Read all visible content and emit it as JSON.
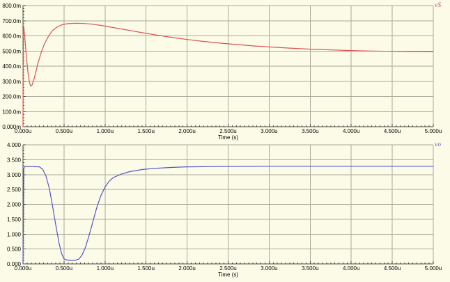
{
  "colors": {
    "background": "#FBFBE7",
    "grid": "#A9A99B",
    "axis": "#4A4A42",
    "tick_text": "#000000",
    "trace_red": "#DC5252",
    "trace_blue": "#5555C8"
  },
  "chart_data": [
    {
      "type": "line",
      "title": "",
      "legend": "vS",
      "trace_name": "vs-trace",
      "color": "#DC5252",
      "xlabel": "Time (s)",
      "ylabel": "",
      "x_unit": "us",
      "y_unit": "mV",
      "xlim": [
        0,
        5
      ],
      "ylim": [
        0,
        800
      ],
      "grid": true,
      "legend_position": "top-right-outside",
      "x_ticks": [
        "0.000u",
        "0.500u",
        "1.000u",
        "1.500u",
        "2.000u",
        "2.500u",
        "3.000u",
        "3.500u",
        "4.000u",
        "4.500u",
        "5.000u"
      ],
      "y_ticks": [
        "800.0m",
        "700.0m",
        "600.0m",
        "500.0m",
        "400.0m",
        "300.0m",
        "200.0m",
        "100.0m",
        "0.000m"
      ],
      "series": [
        {
          "name": "vS",
          "points": [
            [
              0,
              0
            ],
            [
              0.004,
              650
            ],
            [
              0.01,
              658
            ],
            [
              0.02,
              600
            ],
            [
              0.04,
              470
            ],
            [
              0.06,
              360
            ],
            [
              0.08,
              290
            ],
            [
              0.095,
              268
            ],
            [
              0.11,
              275
            ],
            [
              0.14,
              325
            ],
            [
              0.18,
              415
            ],
            [
              0.22,
              487
            ],
            [
              0.26,
              545
            ],
            [
              0.31,
              597
            ],
            [
              0.36,
              635
            ],
            [
              0.42,
              660
            ],
            [
              0.48,
              674
            ],
            [
              0.55,
              681
            ],
            [
              0.65,
              683
            ],
            [
              0.75,
              682
            ],
            [
              0.85,
              677
            ],
            [
              0.95,
              669
            ],
            [
              1.05,
              660
            ],
            [
              1.15,
              650
            ],
            [
              1.3,
              636
            ],
            [
              1.45,
              621
            ],
            [
              1.6,
              608
            ],
            [
              1.8,
              591
            ],
            [
              2.0,
              576
            ],
            [
              2.2,
              563
            ],
            [
              2.4,
              552
            ],
            [
              2.6,
              543
            ],
            [
              2.8,
              534
            ],
            [
              3.0,
              527
            ],
            [
              3.25,
              519
            ],
            [
              3.5,
              512
            ],
            [
              3.75,
              507
            ],
            [
              4.0,
              503
            ],
            [
              4.25,
              500
            ],
            [
              4.5,
              498
            ],
            [
              4.75,
              496
            ],
            [
              5.0,
              495
            ]
          ]
        }
      ]
    },
    {
      "type": "line",
      "title": "",
      "legend": "vo",
      "trace_name": "vo-trace",
      "color": "#5555C8",
      "xlabel": "Time (s)",
      "ylabel": "",
      "x_unit": "us",
      "y_unit": "V",
      "xlim": [
        0,
        5
      ],
      "ylim": [
        0,
        4
      ],
      "grid": true,
      "legend_position": "top-right-outside",
      "x_ticks": [
        "0.000u",
        "0.500u",
        "1.000u",
        "1.500u",
        "2.000u",
        "2.500u",
        "3.000u",
        "3.500u",
        "4.000u",
        "4.500u",
        "5.000u"
      ],
      "y_ticks": [
        "4.000",
        "3.500",
        "3.000",
        "2.500",
        "2.000",
        "1.500",
        "1.000",
        "0.500",
        "0.000"
      ],
      "series": [
        {
          "name": "vo",
          "points": [
            [
              0,
              0
            ],
            [
              0.01,
              3.2
            ],
            [
              0.02,
              3.27
            ],
            [
              0.1,
              3.27
            ],
            [
              0.2,
              3.26
            ],
            [
              0.24,
              3.18
            ],
            [
              0.28,
              2.95
            ],
            [
              0.32,
              2.55
            ],
            [
              0.36,
              1.95
            ],
            [
              0.4,
              1.3
            ],
            [
              0.44,
              0.7
            ],
            [
              0.47,
              0.35
            ],
            [
              0.5,
              0.17
            ],
            [
              0.53,
              0.13
            ],
            [
              0.58,
              0.12
            ],
            [
              0.63,
              0.12
            ],
            [
              0.68,
              0.16
            ],
            [
              0.72,
              0.3
            ],
            [
              0.76,
              0.55
            ],
            [
              0.8,
              0.9
            ],
            [
              0.85,
              1.4
            ],
            [
              0.9,
              1.9
            ],
            [
              0.95,
              2.3
            ],
            [
              1.0,
              2.58
            ],
            [
              1.05,
              2.78
            ],
            [
              1.1,
              2.9
            ],
            [
              1.2,
              3.02
            ],
            [
              1.3,
              3.1
            ],
            [
              1.45,
              3.17
            ],
            [
              1.6,
              3.21
            ],
            [
              1.8,
              3.24
            ],
            [
              2.0,
              3.26
            ],
            [
              2.4,
              3.27
            ],
            [
              3.0,
              3.28
            ],
            [
              3.5,
              3.28
            ],
            [
              4.0,
              3.28
            ],
            [
              4.5,
              3.28
            ],
            [
              5.0,
              3.28
            ]
          ]
        }
      ]
    }
  ]
}
